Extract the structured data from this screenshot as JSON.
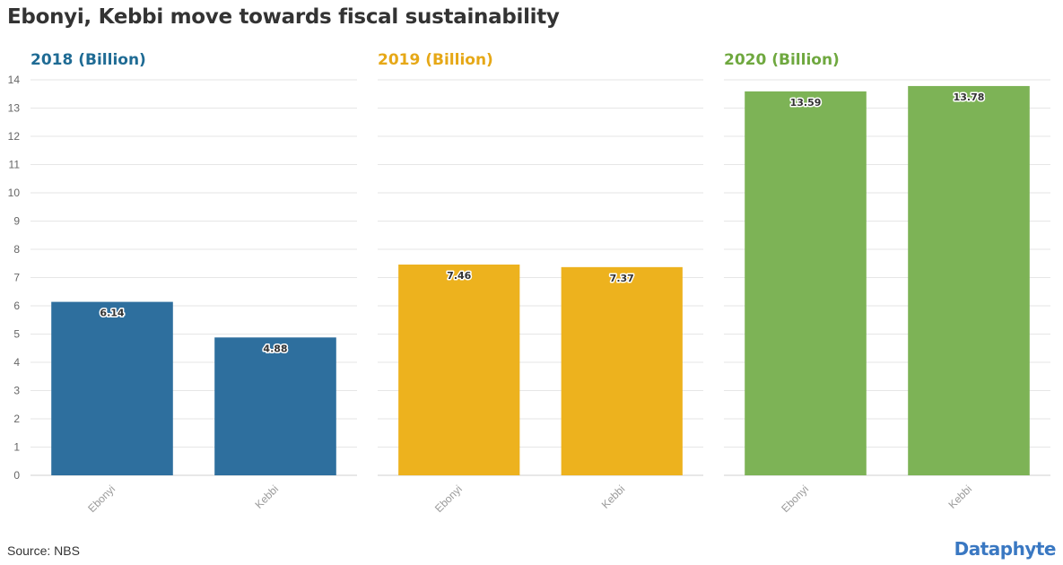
{
  "title": "Ebonyi, Kebbi move towards fiscal sustainability",
  "source": "Source: NBS",
  "brand": "Dataphyte",
  "chart_data": [
    {
      "type": "bar",
      "title": "2018 (Billion)",
      "color": "#2e6f9e",
      "title_color": "#1f6b94",
      "categories": [
        "Ebonyi",
        "Kebbi"
      ],
      "values": [
        6.14,
        4.88
      ],
      "labels": [
        "6.14",
        "4.88"
      ],
      "ylim": [
        0,
        14
      ],
      "yticks": [
        "0",
        "1",
        "2",
        "3",
        "4",
        "5",
        "6",
        "7",
        "8",
        "9",
        "10",
        "11",
        "12",
        "13",
        "14"
      ],
      "grid": true
    },
    {
      "type": "bar",
      "title": "2019 (Billion)",
      "color": "#edb21e",
      "title_color": "#e6a817",
      "categories": [
        "Ebonyi",
        "Kebbi"
      ],
      "values": [
        7.46,
        7.37
      ],
      "labels": [
        "7.46",
        "7.37"
      ],
      "ylim": [
        0,
        14
      ],
      "grid": true
    },
    {
      "type": "bar",
      "title": "2020 (Billion)",
      "color": "#7db356",
      "title_color": "#6fa83f",
      "categories": [
        "Ebonyi",
        "Kebbi"
      ],
      "values": [
        13.59,
        13.78
      ],
      "labels": [
        "13.59",
        "13.78"
      ],
      "ylim": [
        0,
        14
      ],
      "grid": true
    }
  ]
}
